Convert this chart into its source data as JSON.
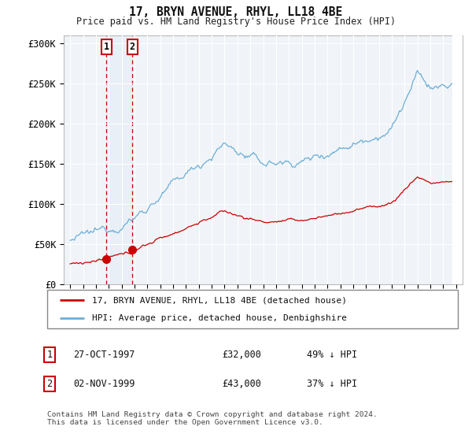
{
  "title": "17, BRYN AVENUE, RHYL, LL18 4BE",
  "subtitle": "Price paid vs. HM Land Registry's House Price Index (HPI)",
  "hpi_color": "#6baed6",
  "price_color": "#cc0000",
  "sale1_year": 1997.82,
  "sale1_price": 32000,
  "sale2_year": 1999.84,
  "sale2_price": 43000,
  "legend_line1": "17, BRYN AVENUE, RHYL, LL18 4BE (detached house)",
  "legend_line2": "HPI: Average price, detached house, Denbighshire",
  "footer": "Contains HM Land Registry data © Crown copyright and database right 2024.\nThis data is licensed under the Open Government Licence v3.0.",
  "ylim": [
    0,
    310000
  ],
  "yticks": [
    0,
    50000,
    100000,
    150000,
    200000,
    250000,
    300000
  ],
  "ytick_labels": [
    "£0",
    "£50K",
    "£100K",
    "£150K",
    "£200K",
    "£250K",
    "£300K"
  ],
  "background_color": "#ffffff",
  "plot_bg_color": "#f0f4f8"
}
